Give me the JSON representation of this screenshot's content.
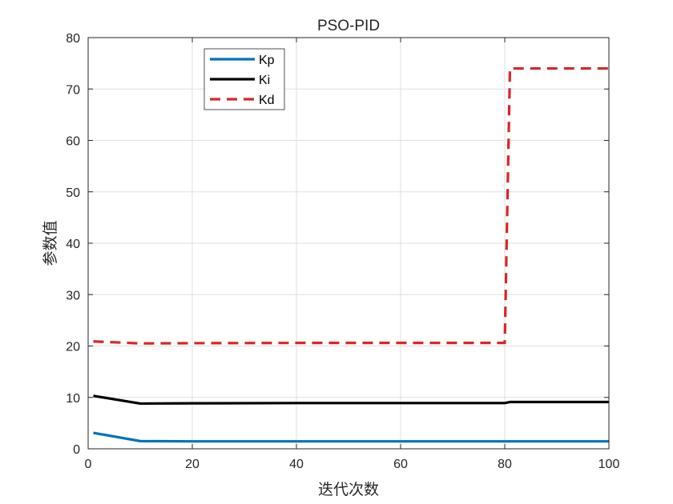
{
  "chart_data": {
    "type": "line",
    "title": "PSO-PID",
    "xlabel": "迭代次数",
    "ylabel": "参数值",
    "xlim": [
      0,
      100
    ],
    "ylim": [
      0,
      80
    ],
    "xticks": [
      0,
      20,
      40,
      60,
      80,
      100
    ],
    "yticks": [
      0,
      10,
      20,
      30,
      40,
      50,
      60,
      70,
      80
    ],
    "xtick_labels": [
      "0",
      "20",
      "40",
      "60",
      "80",
      "100"
    ],
    "ytick_labels": [
      "0",
      "10",
      "20",
      "30",
      "40",
      "50",
      "60",
      "70",
      "80"
    ],
    "grid": true,
    "legend_position": "top-left",
    "series": [
      {
        "name": "Kp",
        "color": "#0072BD",
        "style": "solid",
        "points": [
          [
            1,
            3.1
          ],
          [
            10,
            1.5
          ],
          [
            20,
            1.45
          ],
          [
            40,
            1.45
          ],
          [
            60,
            1.45
          ],
          [
            80,
            1.45
          ],
          [
            100,
            1.45
          ]
        ]
      },
      {
        "name": "Ki",
        "color": "#000000",
        "style": "solid",
        "points": [
          [
            1,
            10.3
          ],
          [
            10,
            8.8
          ],
          [
            20,
            8.85
          ],
          [
            40,
            8.9
          ],
          [
            60,
            8.9
          ],
          [
            80,
            8.9
          ],
          [
            81,
            9.1
          ],
          [
            100,
            9.1
          ]
        ]
      },
      {
        "name": "Kd",
        "color": "#D62728",
        "style": "dashed",
        "points": [
          [
            1,
            20.9
          ],
          [
            10,
            20.5
          ],
          [
            20,
            20.55
          ],
          [
            40,
            20.6
          ],
          [
            60,
            20.6
          ],
          [
            80,
            20.6
          ],
          [
            81,
            74
          ],
          [
            100,
            74
          ]
        ]
      }
    ]
  }
}
